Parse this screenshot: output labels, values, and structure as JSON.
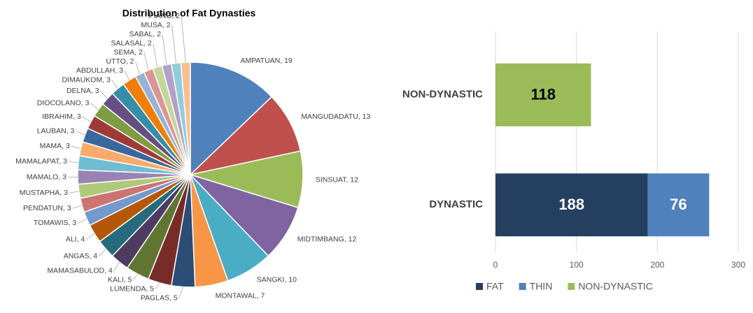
{
  "chart_data": [
    {
      "type": "pie",
      "title": "Distribution of Fat Dynasties",
      "values": [
        19,
        13,
        12,
        12,
        10,
        7,
        5,
        5,
        5,
        4,
        4,
        4,
        3,
        3,
        3,
        3,
        3,
        3,
        3,
        3,
        3,
        3,
        3,
        3,
        2,
        2,
        2,
        2,
        2,
        2
      ],
      "value_labels": [
        "AMPATUAN, 19",
        "MANGUDADATU, 13",
        "SINSUAT, 12",
        "MIDTIMBANG, 12",
        "SANGKI, 10",
        "MONTAWAL, 7",
        "PAGLAS, 5",
        "LUMENDA, 5",
        "KALI, 5",
        "MAMASABULOD, 4",
        "ANGAS, 4",
        "ALI, 4",
        "TOMAWIS, 3",
        "PENDATUN, 3",
        "MUSTAPHA, 3",
        "MAMALO, 3",
        "MAMALAPAT, 3",
        "MAMA, 3",
        "LAUBAN, 3",
        "IBRAHIM, 3",
        "DIOCOLANO, 3",
        "DELNA, 3",
        "DIMAUKOM, 3",
        "ABDULLAH, 3",
        "UTTO, 2",
        "SEMA, 2",
        "SALASAL, 2",
        "SABAL, 2",
        "MUSA, 2",
        "PIANG, 2"
      ],
      "colors": [
        "#4f81bd",
        "#c0504d",
        "#9bbb59",
        "#8064a2",
        "#4bacc6",
        "#f79646",
        "#2c4d75",
        "#772c2a",
        "#5f7530",
        "#4d3b62",
        "#276a7c",
        "#b65708",
        "#729aca",
        "#cd7371",
        "#afc97a",
        "#9983b5",
        "#6fbdd1",
        "#f9ab6b",
        "#3a679c",
        "#9e3b38",
        "#7e9c40",
        "#664f82",
        "#358ea6",
        "#f07f09",
        "#95b3d7",
        "#da9694",
        "#c4d79b",
        "#b1a0c7",
        "#92cddc",
        "#fabf8f"
      ]
    },
    {
      "type": "bar",
      "orientation": "horizontal",
      "stacked": true,
      "categories": [
        "NON-DYNASTIC",
        "DYNASTIC"
      ],
      "series": [
        {
          "name": "FAT",
          "color": "#243f60",
          "label_color": "#ffffff",
          "values": [
            null,
            188
          ]
        },
        {
          "name": "THIN",
          "color": "#4f81bd",
          "label_color": "#ffffff",
          "values": [
            null,
            76
          ]
        },
        {
          "name": "NON-DYNASTIC",
          "color": "#9bbb59",
          "label_color": "#000000",
          "values": [
            118,
            null
          ]
        }
      ],
      "xlim": [
        0,
        300
      ],
      "xticks": [
        0,
        100,
        200,
        300
      ],
      "grid": true,
      "legend": "bottom"
    }
  ]
}
